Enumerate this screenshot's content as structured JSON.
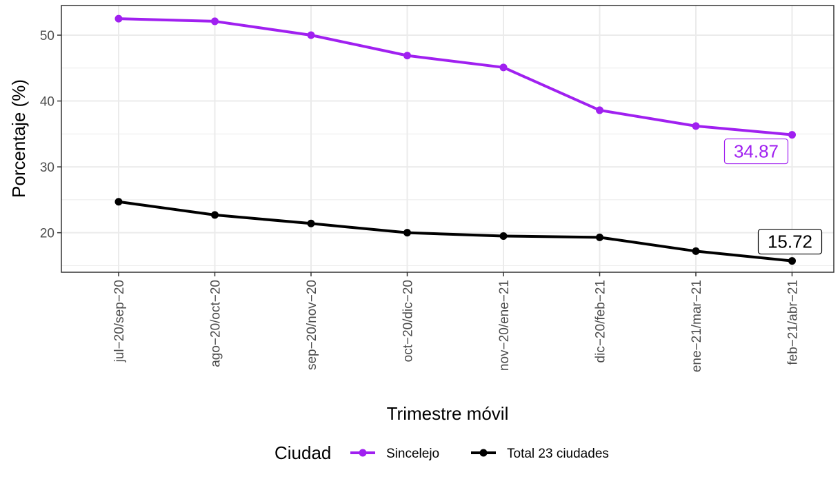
{
  "chart_data": {
    "type": "line",
    "xlabel": "Trimestre móvil",
    "ylabel": "Porcentaje (%)",
    "categories": [
      "jul−20/sep−20",
      "ago−20/oct−20",
      "sep−20/nov−20",
      "oct−20/dic−20",
      "nov−20/ene−21",
      "dic−20/feb−21",
      "ene−21/mar−21",
      "feb−21/abr−21"
    ],
    "ylim": [
      14,
      54.5
    ],
    "yticks": [
      20,
      30,
      40,
      50
    ],
    "grid": true,
    "legend": {
      "title": "Ciudad",
      "position": "bottom"
    },
    "series": [
      {
        "name": "Sincelejo",
        "color": "#a020f0",
        "values": [
          52.5,
          52.1,
          50.0,
          46.9,
          45.1,
          38.6,
          36.2,
          34.87
        ],
        "end_label": "34.87"
      },
      {
        "name": "Total 23 ciudades",
        "color": "#000000",
        "values": [
          24.7,
          22.7,
          21.4,
          20.0,
          19.5,
          19.3,
          17.2,
          15.72
        ],
        "end_label": "15.72"
      }
    ]
  }
}
